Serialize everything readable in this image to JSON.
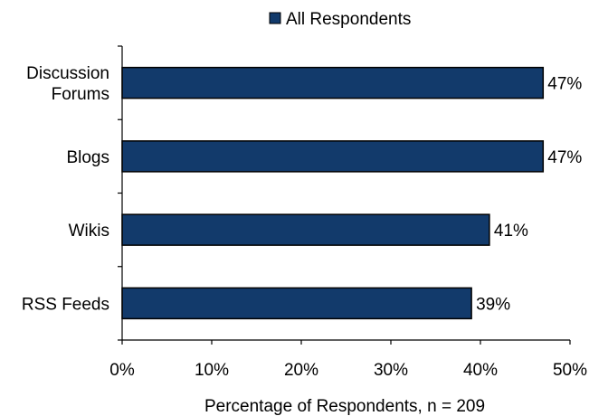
{
  "chart_data": {
    "type": "bar",
    "orientation": "horizontal",
    "categories": [
      [
        "Discussion",
        "Forums"
      ],
      [
        "Blogs"
      ],
      [
        "Wikis"
      ],
      [
        "RSS Feeds"
      ]
    ],
    "series": [
      {
        "name": "All Respondents",
        "values": [
          47,
          47,
          41,
          39
        ],
        "color": "#123a6b"
      }
    ],
    "data_labels": [
      "47%",
      "47%",
      "41%",
      "39%"
    ],
    "xlabel": "Percentage of Respondents, n = 209",
    "ylabel": "",
    "xlim": [
      0,
      50
    ],
    "xticks": [
      0,
      10,
      20,
      30,
      40,
      50
    ],
    "xtick_labels": [
      "0%",
      "10%",
      "20%",
      "30%",
      "40%",
      "50%"
    ],
    "grid": false,
    "legend_position": "top"
  }
}
